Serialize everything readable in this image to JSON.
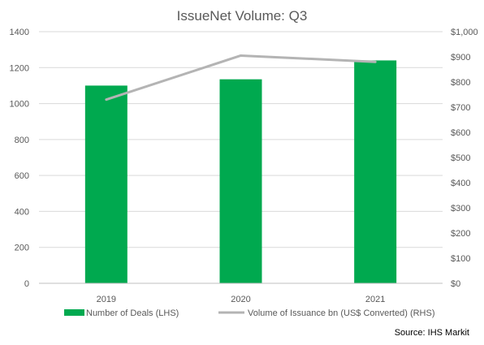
{
  "chart_data": {
    "type": "bar",
    "title": "IssueNet Volume: Q3",
    "categories": [
      "2019",
      "2020",
      "2021"
    ],
    "series": [
      {
        "name": "Number of Deals (LHS)",
        "type": "bar",
        "axis": "left",
        "color": "#00a94f",
        "values": [
          1100,
          1135,
          1240
        ]
      },
      {
        "name": "Volume of Issuance bn (US$ Converted) (RHS)",
        "type": "line",
        "axis": "right",
        "color": "#b4b4b4",
        "values": [
          730,
          905,
          880
        ]
      }
    ],
    "y_left": {
      "min": 0,
      "max": 1400,
      "ticks": [
        "0",
        "200",
        "400",
        "600",
        "800",
        "1000",
        "1200",
        "1400"
      ]
    },
    "y_right": {
      "min": 0,
      "max": 1000,
      "ticks": [
        "$0",
        "$100",
        "$200",
        "$300",
        "$400",
        "$500",
        "$600",
        "$700",
        "$800",
        "$900",
        "$1,000"
      ]
    },
    "grid": true,
    "legend_position": "bottom",
    "source": "Source: IHS Markit",
    "colors": {
      "grid": "#d9d9d9",
      "axis": "#bfbfbf",
      "text": "#595959"
    }
  }
}
